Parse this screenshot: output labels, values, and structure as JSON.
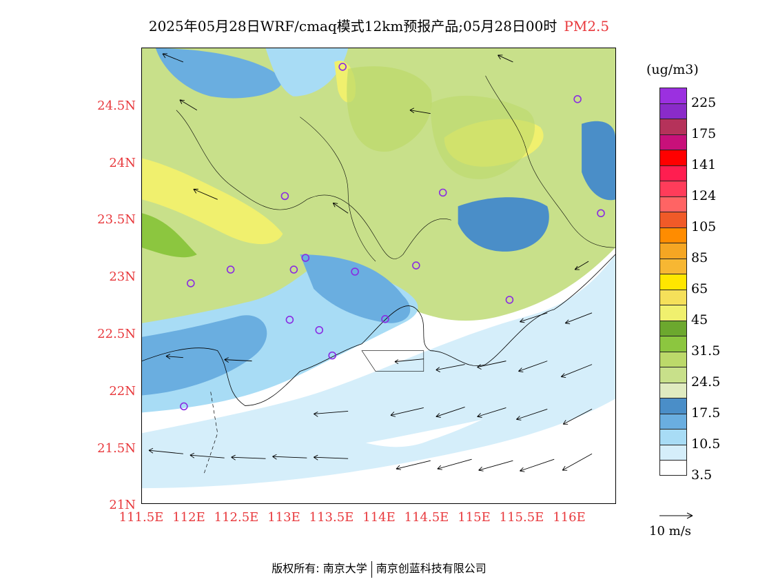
{
  "title": {
    "main": "2025年05月28日WRF/cmaq模式12km预报产品;05月28日00时",
    "pollutant": "PM2.5"
  },
  "axes": {
    "y_ticks": [
      "24.5N",
      "24N",
      "23.5N",
      "23N",
      "22.5N",
      "22N",
      "21.5N",
      "21N"
    ],
    "x_ticks": [
      "111.5E",
      "112E",
      "112.5E",
      "113E",
      "113.5E",
      "114E",
      "114.5E",
      "115E",
      "115.5E",
      "116E"
    ]
  },
  "colorbar": {
    "unit": "(ug/m3)",
    "colors": [
      "#9b30e0",
      "#8a2bc9",
      "#b5325a",
      "#c8107a",
      "#ff0000",
      "#ff1e50",
      "#ff3c5a",
      "#ff6464",
      "#f05a28",
      "#ff8c00",
      "#f5a623",
      "#f7b733",
      "#ffe600",
      "#f5e05a",
      "#f0f06e",
      "#6ca82e",
      "#8cc63f",
      "#bcd96a",
      "#c8e08a",
      "#e0ebc0",
      "#4a8ec8",
      "#6aaee0",
      "#a8dcf5",
      "#d5eefa",
      "#ffffff"
    ],
    "labels": [
      "225",
      "175",
      "141",
      "124",
      "105",
      "85",
      "65",
      "45",
      "31.5",
      "24.5",
      "17.5",
      "10.5",
      "3.5"
    ]
  },
  "reference_vector": {
    "label": "10 m/s",
    "speed_ms": 10
  },
  "footer": {
    "left": "版权所有: 南京大学",
    "right": "南京创蓝科技有限公司"
  }
}
